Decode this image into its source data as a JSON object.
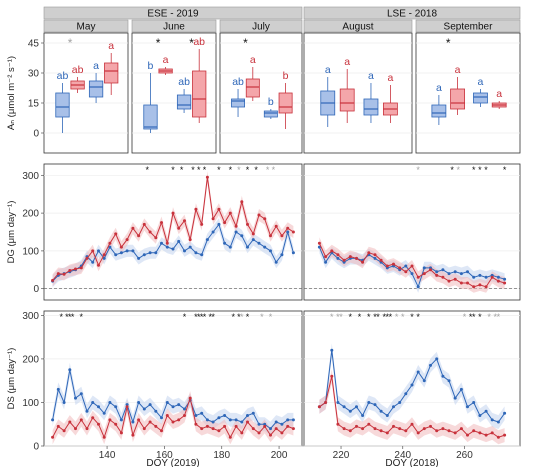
{
  "colors": {
    "red": "#c8323c",
    "blue": "#2f67b8",
    "red_fill": "#f4a6aa",
    "blue_fill": "#a8c0e8",
    "red_ribbon": "#f1b9bc",
    "blue_ribbon": "#c3d3ef",
    "strip": "#cfcfcf",
    "grid": "#eeeeee",
    "sig_black": "#111111",
    "sig_gray": "#a3a3a3"
  },
  "chart_data": [
    {
      "type": "box",
      "ylabel": "Aₙ (μmol m⁻² s⁻¹)",
      "ylim": [
        -10,
        50
      ],
      "yticks": [
        0,
        15,
        30,
        45
      ],
      "groups": [
        {
          "site": "ESE - 2019",
          "panels": [
            {
              "name": "May",
              "pairs": [
                {
                  "stars": "*",
                  "star_color": "gray",
                  "blue": {
                    "label": "ab",
                    "q": [
                      0,
                      8,
                      13,
                      20,
                      25
                    ]
                  },
                  "red": {
                    "label": "ab",
                    "q": [
                      20,
                      22,
                      24,
                      26,
                      28
                    ]
                  }
                },
                {
                  "stars": "",
                  "star_color": "gray",
                  "blue": {
                    "label": "a",
                    "q": [
                      15,
                      18,
                      23,
                      26,
                      30
                    ]
                  },
                  "red": {
                    "label": "a",
                    "q": [
                      19,
                      25,
                      31,
                      35,
                      40
                    ]
                  }
                }
              ]
            },
            {
              "name": "June",
              "pairs": [
                {
                  "stars": "*",
                  "star_color": "black",
                  "blue": {
                    "label": "b",
                    "q": [
                      0,
                      2,
                      3,
                      14,
                      30
                    ]
                  },
                  "red": {
                    "label": "a",
                    "q": [
                      29,
                      30,
                      31,
                      32,
                      33
                    ]
                  }
                },
                {
                  "stars": "*",
                  "star_color": "black",
                  "blue": {
                    "label": "ab",
                    "q": [
                      10,
                      12,
                      14,
                      19,
                      22
                    ]
                  },
                  "red": {
                    "label": "ab",
                    "q": [
                      5,
                      8,
                      17,
                      31,
                      42
                    ]
                  }
                }
              ]
            },
            {
              "name": "July",
              "pairs": [
                {
                  "stars": "*",
                  "star_color": "black",
                  "blue": {
                    "label": "ab",
                    "q": [
                      8,
                      13,
                      16,
                      17,
                      22
                    ]
                  },
                  "red": {
                    "label": "a",
                    "q": [
                      16,
                      18,
                      23,
                      27,
                      33
                    ]
                  }
                },
                {
                  "stars": "",
                  "star_color": "gray",
                  "blue": {
                    "label": "b",
                    "q": [
                      7,
                      8,
                      10,
                      11,
                      12
                    ]
                  },
                  "red": {
                    "label": "b",
                    "q": [
                      2,
                      10,
                      13,
                      20,
                      25
                    ]
                  }
                }
              ]
            }
          ]
        },
        {
          "site": "LSE - 2018",
          "panels": [
            {
              "name": "August",
              "pairs": [
                {
                  "stars": "",
                  "star_color": "gray",
                  "blue": {
                    "label": "a",
                    "q": [
                      3,
                      9,
                      15,
                      21,
                      28
                    ]
                  },
                  "red": {
                    "label": "a",
                    "q": [
                      5,
                      11,
                      15,
                      22,
                      32
                    ]
                  }
                },
                {
                  "stars": "",
                  "star_color": "gray",
                  "blue": {
                    "label": "a",
                    "q": [
                      5,
                      9,
                      12,
                      17,
                      25
                    ]
                  },
                  "red": {
                    "label": "a",
                    "q": [
                      5,
                      9,
                      12,
                      15,
                      24
                    ]
                  }
                }
              ]
            },
            {
              "name": "September",
              "pairs": [
                {
                  "stars": "*",
                  "star_color": "black",
                  "blue": {
                    "label": "a",
                    "q": [
                      4,
                      8,
                      10,
                      14,
                      19
                    ]
                  },
                  "red": {
                    "label": "a",
                    "q": [
                      9,
                      12,
                      15,
                      22,
                      28
                    ]
                  }
                },
                {
                  "stars": "",
                  "star_color": "gray",
                  "blue": {
                    "label": "a",
                    "q": [
                      13,
                      15,
                      18,
                      20,
                      22
                    ]
                  },
                  "red": {
                    "label": "a",
                    "q": [
                      12,
                      13,
                      14,
                      15,
                      16
                    ]
                  }
                }
              ]
            }
          ]
        }
      ]
    },
    {
      "type": "line",
      "ylabel": "DG (μm day⁻¹)",
      "ylim": [
        -30,
        330
      ],
      "yticks": [
        0,
        100,
        200,
        300
      ],
      "panels": [
        {
          "site": "ESE - 2019",
          "xlim": [
            118,
            208
          ],
          "x": [
            121,
            123,
            125,
            127,
            129,
            131,
            133,
            135,
            137,
            139,
            141,
            143,
            145,
            147,
            149,
            151,
            153,
            155,
            157,
            159,
            161,
            163,
            165,
            167,
            169,
            171,
            173,
            175,
            177,
            179,
            181,
            183,
            185,
            187,
            189,
            191,
            193,
            195,
            197,
            199,
            201,
            203,
            205
          ],
          "red": [
            22,
            40,
            38,
            48,
            52,
            55,
            80,
            100,
            62,
            90,
            120,
            145,
            110,
            130,
            160,
            140,
            170,
            150,
            135,
            175,
            120,
            200,
            160,
            180,
            130,
            210,
            170,
            295,
            185,
            210,
            175,
            200,
            165,
            230,
            170,
            145,
            195,
            185,
            140,
            165,
            140,
            160,
            150
          ],
          "blue": [
            20,
            35,
            40,
            45,
            50,
            60,
            85,
            70,
            100,
            80,
            110,
            90,
            95,
            100,
            100,
            80,
            90,
            95,
            95,
            120,
            110,
            105,
            125,
            100,
            110,
            95,
            90,
            130,
            150,
            170,
            120,
            110,
            150,
            140,
            110,
            130,
            120,
            110,
            100,
            70,
            90,
            150,
            95
          ],
          "sig_black": [
            154,
            163,
            166,
            170,
            172,
            174,
            179,
            183,
            189,
            192
          ],
          "sig_gray": [
            186,
            196,
            198
          ]
        },
        {
          "site": "LSE - 2018",
          "xlim": [
            208,
            278
          ],
          "x": [
            213,
            215,
            217,
            219,
            221,
            223,
            225,
            227,
            229,
            231,
            233,
            235,
            237,
            239,
            241,
            243,
            245,
            247,
            249,
            251,
            253,
            255,
            257,
            259,
            261,
            263,
            265,
            267,
            269,
            271,
            273
          ],
          "red": [
            120,
            85,
            100,
            90,
            75,
            85,
            80,
            70,
            95,
            90,
            75,
            60,
            65,
            55,
            45,
            60,
            30,
            40,
            50,
            35,
            30,
            20,
            25,
            15,
            15,
            5,
            10,
            5,
            30,
            20,
            15
          ],
          "blue": [
            110,
            70,
            95,
            80,
            70,
            80,
            80,
            75,
            90,
            80,
            70,
            55,
            60,
            50,
            60,
            40,
            5,
            55,
            55,
            45,
            50,
            40,
            45,
            40,
            45,
            30,
            35,
            30,
            35,
            30,
            25
          ],
          "sig_black": [
            256,
            263,
            265,
            267,
            273
          ],
          "sig_gray": [
            245,
            258
          ]
        }
      ]
    },
    {
      "type": "line",
      "ylabel": "DS (μm day⁻¹)",
      "ylim": [
        0,
        310
      ],
      "yticks": [
        0,
        100,
        200,
        300
      ],
      "xlabels": [
        "DOY (2019)",
        "DOY (2018)"
      ],
      "panels": [
        {
          "site": "ESE - 2019",
          "xlim": [
            118,
            208
          ],
          "xticks": [
            140,
            160,
            180,
            200
          ],
          "x": [
            121,
            123,
            125,
            127,
            129,
            131,
            133,
            135,
            137,
            139,
            141,
            143,
            145,
            147,
            149,
            151,
            153,
            155,
            157,
            159,
            161,
            163,
            165,
            167,
            169,
            171,
            173,
            175,
            177,
            179,
            181,
            183,
            185,
            187,
            189,
            191,
            193,
            195,
            197,
            199,
            201,
            203,
            205
          ],
          "red": [
            20,
            45,
            35,
            55,
            40,
            60,
            40,
            65,
            50,
            20,
            60,
            50,
            30,
            90,
            25,
            60,
            40,
            55,
            45,
            35,
            70,
            55,
            60,
            70,
            110,
            50,
            40,
            45,
            40,
            35,
            45,
            20,
            45,
            30,
            55,
            40,
            30,
            45,
            25,
            40,
            30,
            45,
            40
          ],
          "blue": [
            60,
            130,
            100,
            175,
            110,
            120,
            80,
            100,
            90,
            75,
            100,
            90,
            60,
            95,
            55,
            100,
            85,
            95,
            80,
            65,
            100,
            90,
            95,
            85,
            105,
            70,
            75,
            60,
            55,
            65,
            70,
            60,
            60,
            55,
            70,
            75,
            50,
            50,
            40,
            55,
            50,
            60,
            60
          ],
          "sig_black": [
            124,
            126,
            127,
            128,
            131,
            167,
            171,
            172,
            173,
            174,
            176,
            177,
            184,
            186,
            189
          ],
          "sig_gray": [
            187,
            194,
            197
          ]
        },
        {
          "site": "LSE - 2018",
          "xlim": [
            208,
            278
          ],
          "xticks": [
            220,
            240,
            260
          ],
          "x": [
            213,
            215,
            217,
            219,
            221,
            223,
            225,
            227,
            229,
            231,
            233,
            235,
            237,
            239,
            241,
            243,
            245,
            247,
            249,
            251,
            253,
            255,
            257,
            259,
            261,
            263,
            265,
            267,
            269,
            271,
            273
          ],
          "red": [
            90,
            100,
            160,
            50,
            40,
            35,
            45,
            40,
            50,
            40,
            35,
            30,
            45,
            40,
            35,
            50,
            30,
            40,
            45,
            35,
            40,
            35,
            30,
            40,
            25,
            35,
            30,
            25,
            30,
            20,
            25
          ],
          "blue": [
            90,
            100,
            220,
            100,
            90,
            80,
            90,
            70,
            100,
            95,
            80,
            70,
            90,
            100,
            120,
            140,
            170,
            150,
            185,
            200,
            160,
            150,
            110,
            130,
            90,
            100,
            70,
            80,
            60,
            55,
            75
          ],
          "sig_black": [
            223,
            226,
            229,
            231,
            232,
            234,
            235,
            236,
            243,
            245,
            262,
            263,
            265
          ],
          "sig_gray": [
            217,
            219,
            220,
            238,
            240,
            260,
            268,
            270,
            271
          ]
        }
      ]
    }
  ]
}
